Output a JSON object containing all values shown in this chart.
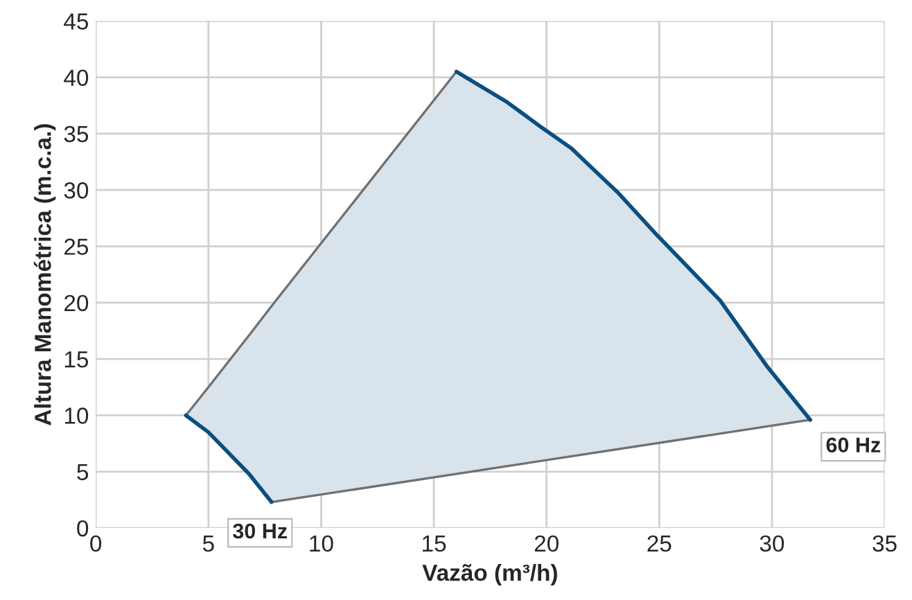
{
  "chart_data": {
    "type": "line",
    "xlabel": "Vazão (m³/h)",
    "ylabel": "Altura Manométrica (m.c.a.)",
    "xlim": [
      0,
      35
    ],
    "ylim": [
      0,
      45
    ],
    "xticks": [
      0,
      5,
      10,
      15,
      20,
      25,
      30,
      35
    ],
    "yticks": [
      0,
      5,
      10,
      15,
      20,
      25,
      30,
      35,
      40,
      45
    ],
    "grid": true,
    "legend": false,
    "series": [
      {
        "color": "#707070",
        "x": [
          4,
          5,
          6.8,
          7.8,
          16
        ],
        "values": [
          10,
          12.5,
          17.1,
          19.7,
          40.5
        ],
        "lower": [
          10,
          8.5,
          4.8,
          2.3,
          4.8
        ],
        "upper": [
          10,
          12.5,
          17.1,
          19.7,
          40.5
        ]
      },
      {
        "color": "#707070",
        "x": [
          7.8,
          31.7
        ],
        "values": [
          2.3,
          9.6
        ]
      },
      {
        "name": "60 Hz",
        "color": "#0b4f80",
        "x": [
          16,
          18.25,
          19.75,
          21.1,
          23.2,
          24.9,
          27.7,
          29.8,
          31.7
        ],
        "values": [
          40.5,
          37.8,
          35.6,
          33.7,
          29.7,
          26.0,
          20.2,
          14.3,
          9.6
        ],
        "lower": [
          4.8,
          5.5,
          5.95,
          6.4,
          7.0,
          7.5,
          8.4,
          9.0,
          9.6
        ],
        "upper": [
          40.5,
          37.8,
          35.6,
          33.7,
          29.7,
          26.0,
          20.2,
          14.3,
          9.6
        ]
      },
      {
        "name": "30 Hz",
        "color": "#0b4f80",
        "x": [
          4,
          5,
          6.8,
          7.8
        ],
        "values": [
          10,
          8.5,
          4.8,
          2.3
        ]
      }
    ]
  }
}
